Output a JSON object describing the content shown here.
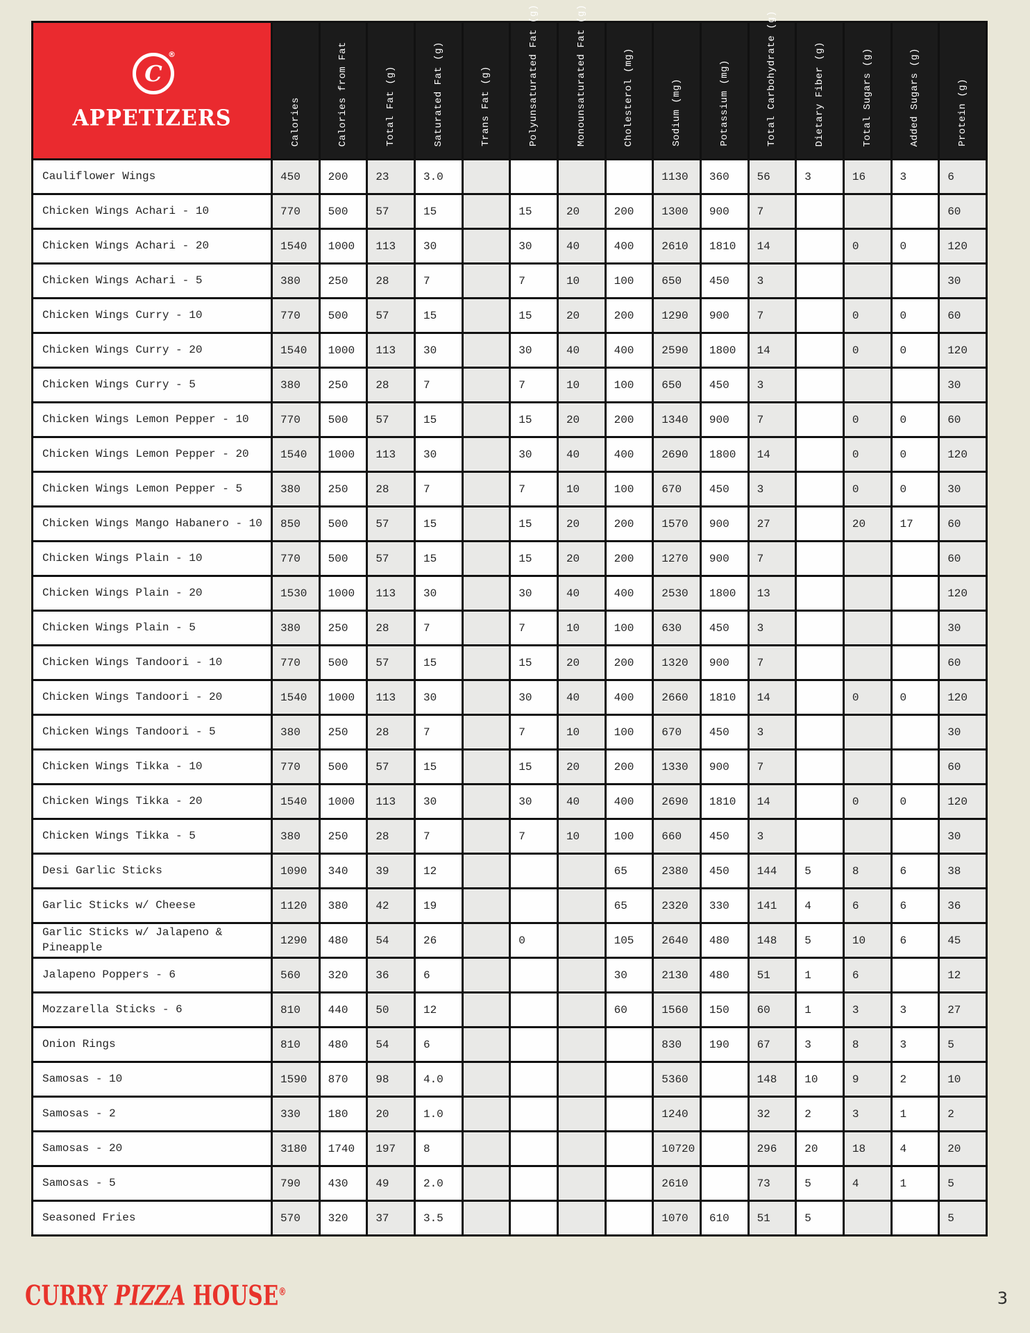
{
  "header": {
    "section_title": "APPETIZERS",
    "brand_initial": "C",
    "registered_mark": "®",
    "columns": [
      "Calories",
      "Calories from Fat",
      "Total Fat (g)",
      "Saturated Fat (g)",
      "Trans Fat (g)",
      "Polyunsaturated Fat (g)",
      "Monounsaturated Fat (g)",
      "Cholesterol (mg)",
      "Sodium (mg)",
      "Potassium (mg)",
      "Total Carbohydrate (g)",
      "Dietary Fiber (g)",
      "Total Sugars (g)",
      "Added Sugars (g)",
      "Protein (g)"
    ]
  },
  "rows": [
    {
      "name": "Cauliflower Wings",
      "values": [
        "450",
        "200",
        "23",
        "3.0",
        "",
        "",
        "",
        "",
        "1130",
        "360",
        "56",
        "3",
        "16",
        "3",
        "6"
      ]
    },
    {
      "name": "Chicken Wings Achari - 10",
      "values": [
        "770",
        "500",
        "57",
        "15",
        "",
        "15",
        "20",
        "200",
        "1300",
        "900",
        "7",
        "",
        "",
        "",
        "60"
      ]
    },
    {
      "name": "Chicken Wings Achari - 20",
      "values": [
        "1540",
        "1000",
        "113",
        "30",
        "",
        "30",
        "40",
        "400",
        "2610",
        "1810",
        "14",
        "",
        "0",
        "0",
        "120"
      ]
    },
    {
      "name": "Chicken Wings Achari - 5",
      "values": [
        "380",
        "250",
        "28",
        "7",
        "",
        "7",
        "10",
        "100",
        "650",
        "450",
        "3",
        "",
        "",
        "",
        "30"
      ]
    },
    {
      "name": "Chicken Wings Curry - 10",
      "values": [
        "770",
        "500",
        "57",
        "15",
        "",
        "15",
        "20",
        "200",
        "1290",
        "900",
        "7",
        "",
        "0",
        "0",
        "60"
      ]
    },
    {
      "name": "Chicken Wings Curry - 20",
      "values": [
        "1540",
        "1000",
        "113",
        "30",
        "",
        "30",
        "40",
        "400",
        "2590",
        "1800",
        "14",
        "",
        "0",
        "0",
        "120"
      ]
    },
    {
      "name": "Chicken Wings Curry - 5",
      "values": [
        "380",
        "250",
        "28",
        "7",
        "",
        "7",
        "10",
        "100",
        "650",
        "450",
        "3",
        "",
        "",
        "",
        "30"
      ]
    },
    {
      "name": "Chicken Wings Lemon Pepper - 10",
      "values": [
        "770",
        "500",
        "57",
        "15",
        "",
        "15",
        "20",
        "200",
        "1340",
        "900",
        "7",
        "",
        "0",
        "0",
        "60"
      ]
    },
    {
      "name": "Chicken Wings Lemon Pepper - 20",
      "values": [
        "1540",
        "1000",
        "113",
        "30",
        "",
        "30",
        "40",
        "400",
        "2690",
        "1800",
        "14",
        "",
        "0",
        "0",
        "120"
      ]
    },
    {
      "name": "Chicken Wings Lemon Pepper - 5",
      "values": [
        "380",
        "250",
        "28",
        "7",
        "",
        "7",
        "10",
        "100",
        "670",
        "450",
        "3",
        "",
        "0",
        "0",
        "30"
      ]
    },
    {
      "name": "Chicken Wings Mango Habanero - 10",
      "values": [
        "850",
        "500",
        "57",
        "15",
        "",
        "15",
        "20",
        "200",
        "1570",
        "900",
        "27",
        "",
        "20",
        "17",
        "60"
      ]
    },
    {
      "name": "Chicken Wings Plain - 10",
      "values": [
        "770",
        "500",
        "57",
        "15",
        "",
        "15",
        "20",
        "200",
        "1270",
        "900",
        "7",
        "",
        "",
        "",
        "60"
      ]
    },
    {
      "name": "Chicken Wings Plain - 20",
      "values": [
        "1530",
        "1000",
        "113",
        "30",
        "",
        "30",
        "40",
        "400",
        "2530",
        "1800",
        "13",
        "",
        "",
        "",
        "120"
      ]
    },
    {
      "name": "Chicken Wings Plain - 5",
      "values": [
        "380",
        "250",
        "28",
        "7",
        "",
        "7",
        "10",
        "100",
        "630",
        "450",
        "3",
        "",
        "",
        "",
        "30"
      ]
    },
    {
      "name": "Chicken Wings Tandoori - 10",
      "values": [
        "770",
        "500",
        "57",
        "15",
        "",
        "15",
        "20",
        "200",
        "1320",
        "900",
        "7",
        "",
        "",
        "",
        "60"
      ]
    },
    {
      "name": "Chicken Wings Tandoori - 20",
      "values": [
        "1540",
        "1000",
        "113",
        "30",
        "",
        "30",
        "40",
        "400",
        "2660",
        "1810",
        "14",
        "",
        "0",
        "0",
        "120"
      ]
    },
    {
      "name": "Chicken Wings Tandoori - 5",
      "values": [
        "380",
        "250",
        "28",
        "7",
        "",
        "7",
        "10",
        "100",
        "670",
        "450",
        "3",
        "",
        "",
        "",
        "30"
      ]
    },
    {
      "name": "Chicken Wings Tikka - 10",
      "values": [
        "770",
        "500",
        "57",
        "15",
        "",
        "15",
        "20",
        "200",
        "1330",
        "900",
        "7",
        "",
        "",
        "",
        "60"
      ]
    },
    {
      "name": "Chicken Wings Tikka - 20",
      "values": [
        "1540",
        "1000",
        "113",
        "30",
        "",
        "30",
        "40",
        "400",
        "2690",
        "1810",
        "14",
        "",
        "0",
        "0",
        "120"
      ]
    },
    {
      "name": "Chicken Wings Tikka - 5",
      "values": [
        "380",
        "250",
        "28",
        "7",
        "",
        "7",
        "10",
        "100",
        "660",
        "450",
        "3",
        "",
        "",
        "",
        "30"
      ]
    },
    {
      "name": "Desi Garlic Sticks",
      "values": [
        "1090",
        "340",
        "39",
        "12",
        "",
        "",
        "",
        "65",
        "2380",
        "450",
        "144",
        "5",
        "8",
        "6",
        "38"
      ]
    },
    {
      "name": "Garlic Sticks w/ Cheese",
      "values": [
        "1120",
        "380",
        "42",
        "19",
        "",
        "",
        "",
        "65",
        "2320",
        "330",
        "141",
        "4",
        "6",
        "6",
        "36"
      ]
    },
    {
      "name": "Garlic Sticks w/ Jalapeno & Pineapple",
      "values": [
        "1290",
        "480",
        "54",
        "26",
        "",
        "0",
        "",
        "105",
        "2640",
        "480",
        "148",
        "5",
        "10",
        "6",
        "45"
      ]
    },
    {
      "name": "Jalapeno Poppers - 6",
      "values": [
        "560",
        "320",
        "36",
        "6",
        "",
        "",
        "",
        "30",
        "2130",
        "480",
        "51",
        "1",
        "6",
        "",
        "12"
      ]
    },
    {
      "name": "Mozzarella Sticks - 6",
      "values": [
        "810",
        "440",
        "50",
        "12",
        "",
        "",
        "",
        "60",
        "1560",
        "150",
        "60",
        "1",
        "3",
        "3",
        "27"
      ]
    },
    {
      "name": "Onion Rings",
      "values": [
        "810",
        "480",
        "54",
        "6",
        "",
        "",
        "",
        "",
        "830",
        "190",
        "67",
        "3",
        "8",
        "3",
        "5"
      ]
    },
    {
      "name": "Samosas - 10",
      "values": [
        "1590",
        "870",
        "98",
        "4.0",
        "",
        "",
        "",
        "",
        "5360",
        "",
        "148",
        "10",
        "9",
        "2",
        "10"
      ]
    },
    {
      "name": "Samosas - 2",
      "values": [
        "330",
        "180",
        "20",
        "1.0",
        "",
        "",
        "",
        "",
        "1240",
        "",
        "32",
        "2",
        "3",
        "1",
        "2"
      ]
    },
    {
      "name": "Samosas - 20",
      "values": [
        "3180",
        "1740",
        "197",
        "8",
        "",
        "",
        "",
        "",
        "10720",
        "",
        "296",
        "20",
        "18",
        "4",
        "20"
      ]
    },
    {
      "name": "Samosas - 5",
      "values": [
        "790",
        "430",
        "49",
        "2.0",
        "",
        "",
        "",
        "",
        "2610",
        "",
        "73",
        "5",
        "4",
        "1",
        "5"
      ]
    },
    {
      "name": "Seasoned Fries",
      "values": [
        "570",
        "320",
        "37",
        "3.5",
        "",
        "",
        "",
        "",
        "1070",
        "610",
        "51",
        "5",
        "",
        "",
        "5"
      ]
    }
  ],
  "footer": {
    "brand_word1": "CURRY",
    "brand_word2": "PIZZA",
    "brand_word3": "HOUSE",
    "registered_mark": "®",
    "page_number": "3"
  },
  "colors": {
    "page_background": "#e9e7d8",
    "accent_red": "#ea2a2f",
    "header_black": "#1b1b1b",
    "shade_gray": "#e9e9e7",
    "border_black": "#111111"
  }
}
